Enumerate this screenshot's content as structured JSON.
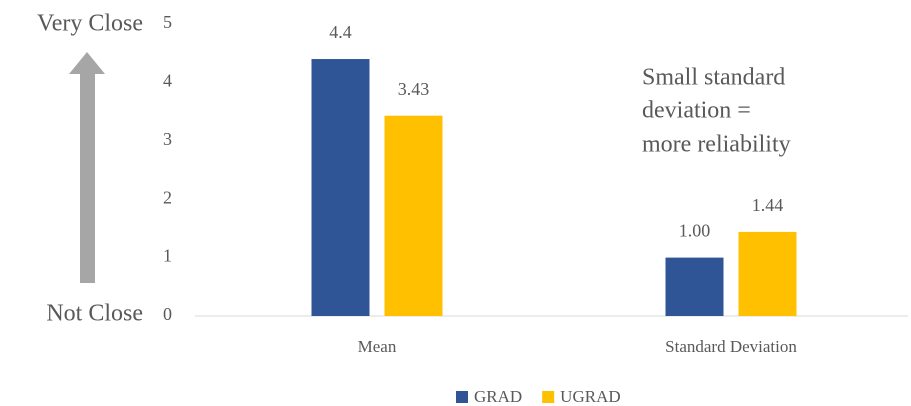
{
  "chart_data": {
    "type": "bar",
    "categories": [
      "Mean",
      "Standard Deviation"
    ],
    "series": [
      {
        "name": "GRAD",
        "color": "#2f5597",
        "values": [
          4.4,
          1
        ],
        "value_labels": [
          "4.4",
          "1.00"
        ]
      },
      {
        "name": "UGRAD",
        "color": "#ffc000",
        "values": [
          3.43,
          1.44
        ]
      }
    ],
    "ylim": [
      0,
      5
    ],
    "yticks": [
      0,
      1,
      2,
      3,
      4,
      5
    ],
    "grid": false,
    "legend": "bottom",
    "annotations": {
      "top": "Very Close",
      "bottom": "Not Close",
      "note": [
        "Small standard",
        "deviation =",
        "more reliability"
      ]
    }
  }
}
